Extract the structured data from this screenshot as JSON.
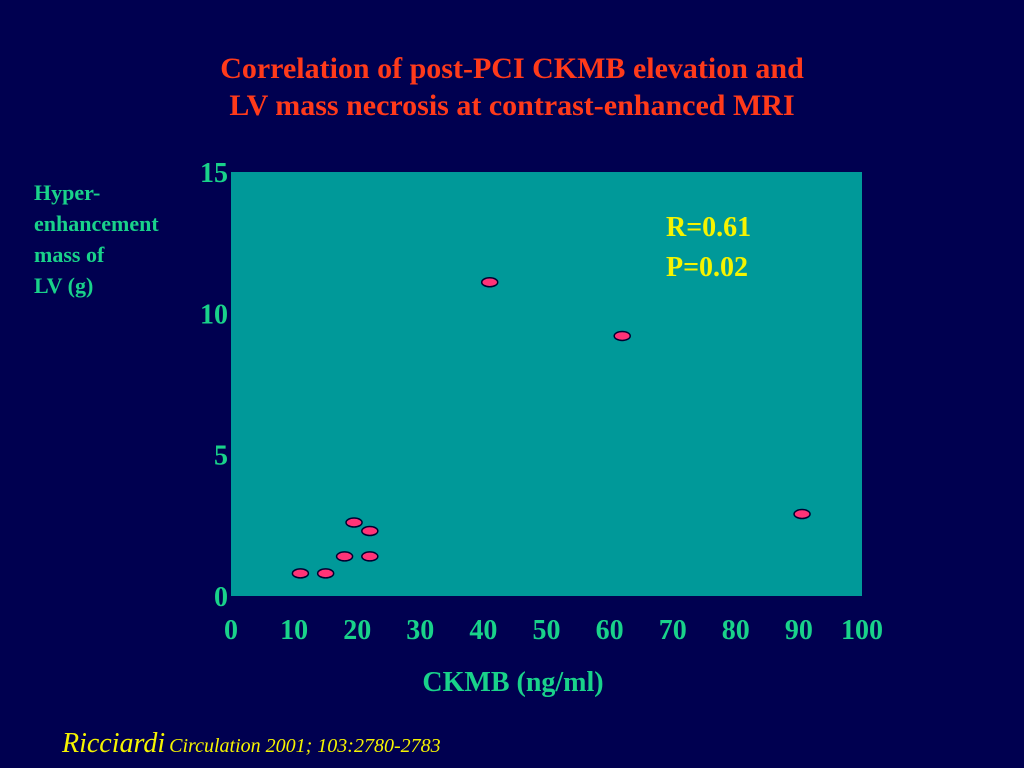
{
  "chart_data": {
    "type": "scatter",
    "title": [
      "Correlation of post-PCI CKMB elevation and",
      "LV mass necrosis at contrast-enhanced MRI"
    ],
    "xlabel": "CKMB (ng/ml)",
    "ylabel": [
      "Hyper-",
      "enhancement",
      "mass of",
      "LV (g)"
    ],
    "xlim": [
      0,
      100
    ],
    "ylim": [
      0,
      15
    ],
    "xticks": [
      0,
      10,
      20,
      30,
      40,
      50,
      60,
      70,
      80,
      90,
      100
    ],
    "yticks": [
      0,
      5,
      10,
      15
    ],
    "grid": false,
    "annotations": [
      "R=0.61",
      "P=0.02"
    ],
    "points": [
      {
        "x": 11,
        "y": 0.8
      },
      {
        "x": 15,
        "y": 0.8
      },
      {
        "x": 18,
        "y": 1.4
      },
      {
        "x": 22,
        "y": 1.4
      },
      {
        "x": 19.5,
        "y": 2.6
      },
      {
        "x": 22,
        "y": 2.3
      },
      {
        "x": 41,
        "y": 11.1
      },
      {
        "x": 62,
        "y": 9.2
      },
      {
        "x": 90.5,
        "y": 2.9
      }
    ],
    "colors": {
      "plot_bg": "#009999",
      "marker_fill": "#ff3377",
      "marker_stroke": "#000030",
      "tick_text": "#19d28a",
      "annotation_text": "#f6f400"
    }
  },
  "citation": {
    "author": "Ricciardi",
    "reference": "Circulation 2001; 103:2780-2783"
  }
}
